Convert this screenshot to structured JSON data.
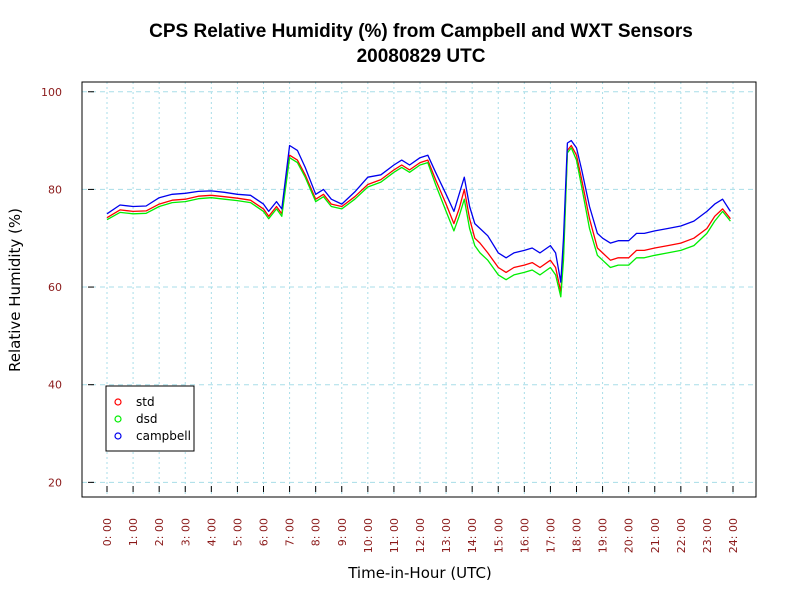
{
  "chart_data": {
    "type": "line",
    "title": "CPS Relative Humidity (%) from Campbell and WXT Sensors",
    "subtitle": "20080829  UTC",
    "xlabel": "Time-in-Hour (UTC)",
    "ylabel": "Relative Humidity (%)",
    "xlim": [
      0,
      24
    ],
    "ylim": [
      17,
      102
    ],
    "grid": true,
    "legend_position": "bottom-left",
    "y_ticks": [
      20,
      40,
      60,
      80,
      100
    ],
    "x_ticks": [
      "0: 00",
      "1: 00",
      "2: 00",
      "3: 00",
      "4: 00",
      "5: 00",
      "6: 00",
      "7: 00",
      "8: 00",
      "9: 00",
      "10: 00",
      "11: 00",
      "12: 00",
      "13: 00",
      "14: 00",
      "15: 00",
      "16: 00",
      "17: 00",
      "18: 00",
      "19: 00",
      "20: 00",
      "21: 00",
      "22: 00",
      "23: 00",
      "24: 00"
    ],
    "x": [
      0.0,
      0.5,
      1.0,
      1.5,
      2.0,
      2.5,
      3.0,
      3.5,
      4.0,
      4.5,
      5.0,
      5.5,
      6.0,
      6.2,
      6.5,
      6.7,
      7.0,
      7.3,
      7.6,
      8.0,
      8.3,
      8.6,
      9.0,
      9.5,
      10.0,
      10.5,
      11.0,
      11.3,
      11.6,
      12.0,
      12.3,
      12.6,
      13.0,
      13.3,
      13.5,
      13.7,
      13.9,
      14.1,
      14.3,
      14.6,
      15.0,
      15.3,
      15.6,
      16.0,
      16.3,
      16.6,
      17.0,
      17.2,
      17.4,
      17.5,
      17.65,
      17.8,
      18.0,
      18.2,
      18.5,
      18.8,
      19.0,
      19.3,
      19.6,
      20.0,
      20.3,
      20.6,
      21.0,
      21.5,
      22.0,
      22.5,
      23.0,
      23.3,
      23.6,
      23.9
    ],
    "series": [
      {
        "name": "std",
        "color": "#ff0000",
        "values": [
          74.2,
          75.8,
          75.5,
          75.6,
          77.0,
          77.8,
          78.0,
          78.6,
          78.8,
          78.5,
          78.2,
          77.8,
          76.0,
          74.5,
          76.5,
          75.0,
          87.0,
          86.0,
          83.0,
          78.0,
          79.0,
          77.0,
          76.5,
          78.5,
          81.0,
          82.0,
          84.0,
          85.0,
          84.0,
          85.5,
          86.0,
          82.0,
          77.0,
          73.0,
          76.0,
          80.0,
          74.0,
          70.0,
          69.0,
          67.0,
          64.0,
          63.0,
          64.0,
          64.5,
          65.0,
          64.0,
          65.5,
          64.0,
          59.0,
          67.0,
          88.0,
          89.0,
          87.0,
          82.0,
          74.0,
          68.0,
          67.0,
          65.5,
          66.0,
          66.0,
          67.5,
          67.5,
          68.0,
          68.5,
          69.0,
          70.0,
          72.0,
          74.5,
          76.0,
          74.0
        ]
      },
      {
        "name": "dsd",
        "color": "#00ee00",
        "values": [
          73.8,
          75.3,
          75.0,
          75.1,
          76.5,
          77.3,
          77.5,
          78.1,
          78.3,
          78.0,
          77.7,
          77.3,
          75.5,
          74.0,
          76.0,
          74.5,
          86.5,
          85.5,
          82.5,
          77.5,
          78.5,
          76.5,
          76.0,
          78.0,
          80.5,
          81.5,
          83.5,
          84.5,
          83.5,
          85.0,
          85.5,
          81.0,
          75.5,
          71.5,
          74.5,
          78.0,
          72.0,
          68.5,
          67.0,
          65.5,
          62.5,
          61.5,
          62.5,
          63.0,
          63.5,
          62.5,
          64.0,
          62.5,
          58.0,
          65.5,
          87.5,
          88.5,
          86.0,
          80.5,
          72.0,
          66.5,
          65.5,
          64.0,
          64.5,
          64.5,
          66.0,
          66.0,
          66.5,
          67.0,
          67.5,
          68.5,
          71.0,
          73.5,
          75.5,
          73.5
        ]
      },
      {
        "name": "campbell",
        "color": "#0000ee",
        "values": [
          75.0,
          76.8,
          76.5,
          76.6,
          78.3,
          79.0,
          79.2,
          79.6,
          79.7,
          79.4,
          79.0,
          78.8,
          77.0,
          75.5,
          77.5,
          76.0,
          89.0,
          88.0,
          84.5,
          79.0,
          80.0,
          78.0,
          77.0,
          79.5,
          82.5,
          83.0,
          85.0,
          86.0,
          85.0,
          86.5,
          87.0,
          83.5,
          79.0,
          75.5,
          79.0,
          82.5,
          76.5,
          73.0,
          72.0,
          70.5,
          67.0,
          66.0,
          67.0,
          67.5,
          68.0,
          67.0,
          68.5,
          67.0,
          61.0,
          70.0,
          89.5,
          90.0,
          88.5,
          84.0,
          76.5,
          71.0,
          70.0,
          69.0,
          69.5,
          69.5,
          71.0,
          71.0,
          71.5,
          72.0,
          72.5,
          73.5,
          75.5,
          77.0,
          78.0,
          75.5
        ]
      }
    ]
  }
}
